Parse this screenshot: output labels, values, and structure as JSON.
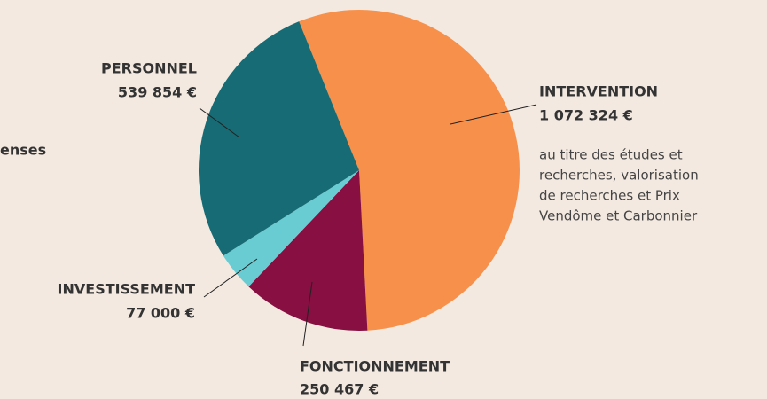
{
  "chart_data": {
    "type": "pie",
    "categories": [
      "INTERVENTION",
      "FONCTIONNEMENT",
      "INVESTISSEMENT",
      "PERSONNEL"
    ],
    "values": [
      1072324,
      250467,
      77000,
      539854
    ],
    "value_labels": [
      "1 072 324 €",
      "250 467 €",
      "77 000 €",
      "539 854 €"
    ],
    "colors": [
      "#f7904a",
      "#870f41",
      "#6accd3",
      "#176b74"
    ],
    "annotations": [
      "au titre des études et",
      "recherches, valorisation",
      "de recherches et Prix",
      "Vendôme et Carbonnier"
    ],
    "partial_text": "enses"
  }
}
